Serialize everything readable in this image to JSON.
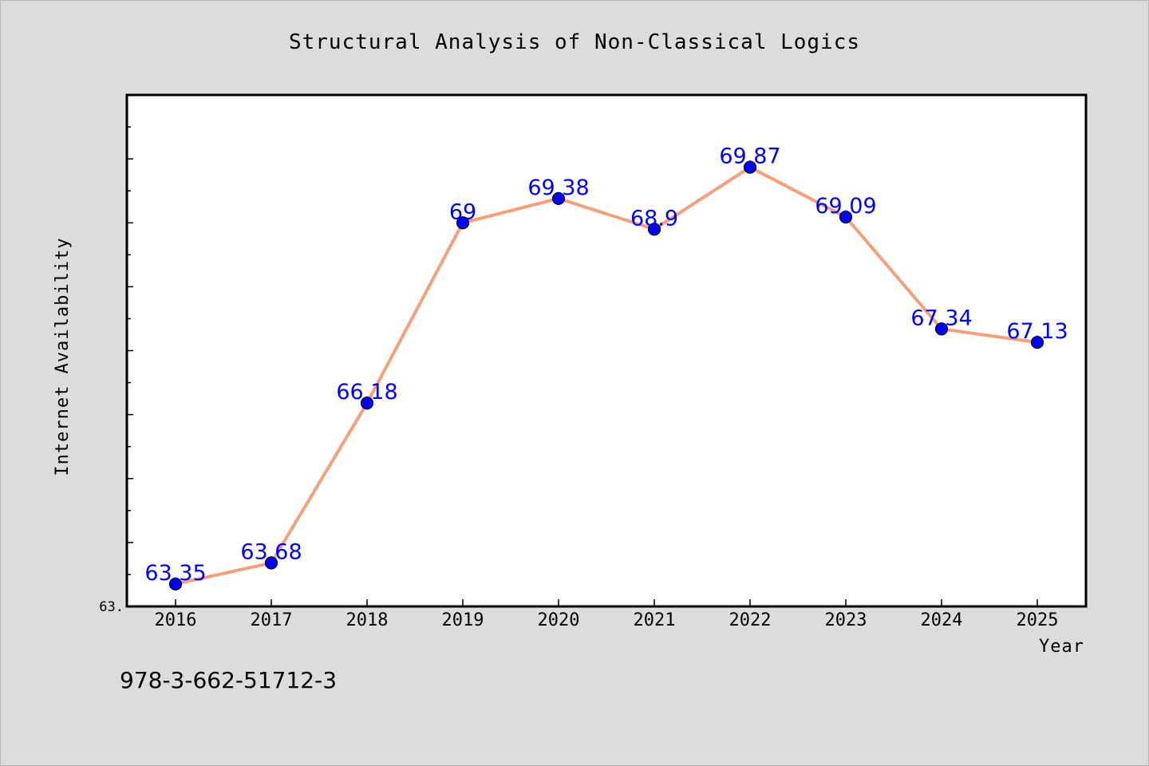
{
  "chart_data": {
    "type": "line",
    "title": "Structural Analysis of Non-Classical Logics",
    "xlabel": "Year",
    "ylabel": "Internet Availability",
    "categories": [
      "2016",
      "2017",
      "2018",
      "2019",
      "2020",
      "2021",
      "2022",
      "2023",
      "2024",
      "2025"
    ],
    "series": [
      {
        "values": [
          63.35,
          63.68,
          66.18,
          69,
          69.38,
          68.9,
          69.87,
          69.09,
          67.34,
          67.13
        ],
        "data_labels": [
          "63.35",
          "63.68",
          "66.18",
          "69",
          "69.38",
          "68.9",
          "69.87",
          "69.09",
          "67.34",
          "67.13"
        ],
        "line_color": "#f4a07a",
        "marker_color": "#0000ff"
      }
    ],
    "ylim": [
      63,
      71
    ],
    "y_tick_label": "63.",
    "grid": false,
    "legend": "none"
  },
  "footer": {
    "isbn": "978-3-662-51712-3"
  },
  "colors": {
    "background": "#dcdcdc",
    "plot_background": "#ffffff",
    "line": "#f4a07a",
    "marker": "#0000ff",
    "data_label": "#0000ff"
  }
}
